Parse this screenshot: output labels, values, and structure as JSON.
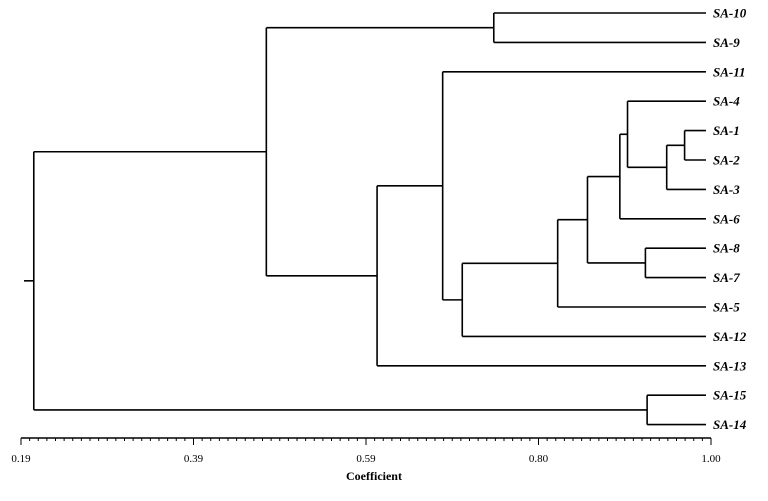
{
  "axis": {
    "title": "Coefficient",
    "min": 0.19,
    "max": 1.0,
    "major_ticks": [
      {
        "value": 0.19,
        "label": "0.19"
      },
      {
        "value": 0.39,
        "label": "0.39"
      },
      {
        "value": 0.59,
        "label": "0.59"
      },
      {
        "value": 0.8,
        "label": "0.80"
      },
      {
        "value": 1.0,
        "label": "1.00"
      }
    ]
  },
  "leaves": [
    "SA-10",
    "SA-9",
    "SA-11",
    "SA-4",
    "SA-1",
    "SA-2",
    "SA-3",
    "SA-6",
    "SA-8",
    "SA-7",
    "SA-5",
    "SA-12",
    "SA-13",
    "SA-15",
    "SA-14"
  ],
  "merges": [
    {
      "id": "SA-10+SA-9",
      "a": "SA-10",
      "b": "SA-9",
      "coefficient": 0.745
    },
    {
      "id": "SA-1+SA-2",
      "a": "SA-1",
      "b": "SA-2",
      "coefficient": 0.969
    },
    {
      "id": "SA-8+SA-7",
      "a": "SA-8",
      "b": "SA-7",
      "coefficient": 0.923
    },
    {
      "id": "SA-15+SA-14",
      "a": "SA-15",
      "b": "SA-14",
      "coefficient": 0.925
    },
    {
      "id": "SA-1-2+SA-3",
      "a": "SA-1+SA-2",
      "b": "SA-3",
      "coefficient": 0.948
    },
    {
      "id": "SA-4+SA-1-3",
      "a": "SA-4",
      "b": "SA-1-2+SA-3",
      "coefficient": 0.902
    },
    {
      "id": "SA-4-3+SA-6",
      "a": "SA-4+SA-1-3",
      "b": "SA-6",
      "coefficient": 0.893
    },
    {
      "id": "SA-6grp+SA-8grp",
      "a": "SA-4-3+SA-6",
      "b": "SA-8+SA-7",
      "coefficient": 0.855
    },
    {
      "id": "SA-grp+SA-5",
      "a": "SA-6grp+SA-8grp",
      "b": "SA-5",
      "coefficient": 0.82
    },
    {
      "id": "SA-grp+SA-12",
      "a": "SA-grp+SA-5",
      "b": "SA-12",
      "coefficient": 0.708
    },
    {
      "id": "SA-11+SA-grp",
      "a": "SA-11",
      "b": "SA-grp+SA-12",
      "coefficient": 0.685
    },
    {
      "id": "SA-grp+SA-13",
      "a": "SA-11+SA-grp",
      "b": "SA-13",
      "coefficient": 0.608
    },
    {
      "id": "SA-9-10+SA-grp",
      "a": "SA-10+SA-9",
      "b": "SA-grp+SA-13",
      "coefficient": 0.478
    },
    {
      "id": "root",
      "a": "SA-9-10+SA-grp",
      "b": "SA-15+SA-14",
      "coefficient": 0.205
    }
  ]
}
